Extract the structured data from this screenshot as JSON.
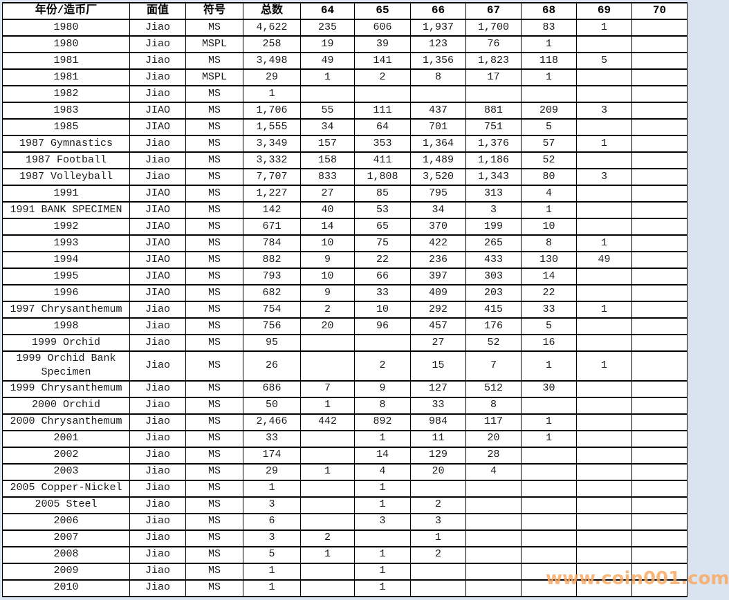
{
  "watermark": {
    "text": "www.coin001.com",
    "color": "#f9aa64"
  },
  "chart_data": {
    "type": "table",
    "title": "",
    "columns": [
      "年份/造币厂",
      "面值",
      "符号",
      "总数",
      "64",
      "65",
      "66",
      "67",
      "68",
      "69",
      "70"
    ],
    "rows": [
      [
        "1980",
        "Jiao",
        "MS",
        "4,622",
        "235",
        "606",
        "1,937",
        "1,700",
        "83",
        "1",
        ""
      ],
      [
        "1980",
        "Jiao",
        "MSPL",
        "258",
        "19",
        "39",
        "123",
        "76",
        "1",
        "",
        ""
      ],
      [
        "1981",
        "Jiao",
        "MS",
        "3,498",
        "49",
        "141",
        "1,356",
        "1,823",
        "118",
        "5",
        ""
      ],
      [
        "1981",
        "Jiao",
        "MSPL",
        "29",
        "1",
        "2",
        "8",
        "17",
        "1",
        "",
        ""
      ],
      [
        "1982",
        "Jiao",
        "MS",
        "1",
        "",
        "",
        "",
        "",
        "",
        "",
        ""
      ],
      [
        "1983",
        "JIAO",
        "MS",
        "1,706",
        "55",
        "111",
        "437",
        "881",
        "209",
        "3",
        ""
      ],
      [
        "1985",
        "JIAO",
        "MS",
        "1,555",
        "34",
        "64",
        "701",
        "751",
        "5",
        "",
        ""
      ],
      [
        "1987 Gymnastics",
        "Jiao",
        "MS",
        "3,349",
        "157",
        "353",
        "1,364",
        "1,376",
        "57",
        "1",
        ""
      ],
      [
        "1987 Football",
        "Jiao",
        "MS",
        "3,332",
        "158",
        "411",
        "1,489",
        "1,186",
        "52",
        "",
        ""
      ],
      [
        "1987 Volleyball",
        "Jiao",
        "MS",
        "7,707",
        "833",
        "1,808",
        "3,520",
        "1,343",
        "80",
        "3",
        ""
      ],
      [
        "1991",
        "JIAO",
        "MS",
        "1,227",
        "27",
        "85",
        "795",
        "313",
        "4",
        "",
        ""
      ],
      [
        "1991 BANK SPECIMEN",
        "JIAO",
        "MS",
        "142",
        "40",
        "53",
        "34",
        "3",
        "1",
        "",
        ""
      ],
      [
        "1992",
        "JIAO",
        "MS",
        "671",
        "14",
        "65",
        "370",
        "199",
        "10",
        "",
        ""
      ],
      [
        "1993",
        "JIAO",
        "MS",
        "784",
        "10",
        "75",
        "422",
        "265",
        "8",
        "1",
        ""
      ],
      [
        "1994",
        "JIAO",
        "MS",
        "882",
        "9",
        "22",
        "236",
        "433",
        "130",
        "49",
        ""
      ],
      [
        "1995",
        "JIAO",
        "MS",
        "793",
        "10",
        "66",
        "397",
        "303",
        "14",
        "",
        ""
      ],
      [
        "1996",
        "JIAO",
        "MS",
        "682",
        "9",
        "33",
        "409",
        "203",
        "22",
        "",
        ""
      ],
      [
        "1997 Chrysanthemum",
        "Jiao",
        "MS",
        "754",
        "2",
        "10",
        "292",
        "415",
        "33",
        "1",
        ""
      ],
      [
        "1998",
        "Jiao",
        "MS",
        "756",
        "20",
        "96",
        "457",
        "176",
        "5",
        "",
        ""
      ],
      [
        "1999 Orchid",
        "Jiao",
        "MS",
        "95",
        "",
        "",
        "27",
        "52",
        "16",
        "",
        ""
      ],
      [
        "1999 Orchid Bank Specimen",
        "Jiao",
        "MS",
        "26",
        "",
        "2",
        "15",
        "7",
        "1",
        "1",
        ""
      ],
      [
        "1999 Chrysanthemum",
        "Jiao",
        "MS",
        "686",
        "7",
        "9",
        "127",
        "512",
        "30",
        "",
        ""
      ],
      [
        "2000 Orchid",
        "Jiao",
        "MS",
        "50",
        "1",
        "8",
        "33",
        "8",
        "",
        "",
        ""
      ],
      [
        "2000 Chrysanthemum",
        "Jiao",
        "MS",
        "2,466",
        "442",
        "892",
        "984",
        "117",
        "1",
        "",
        ""
      ],
      [
        "2001",
        "Jiao",
        "MS",
        "33",
        "",
        "1",
        "11",
        "20",
        "1",
        "",
        ""
      ],
      [
        "2002",
        "Jiao",
        "MS",
        "174",
        "",
        "14",
        "129",
        "28",
        "",
        "",
        ""
      ],
      [
        "2003",
        "Jiao",
        "MS",
        "29",
        "1",
        "4",
        "20",
        "4",
        "",
        "",
        ""
      ],
      [
        "2005 Copper-Nickel",
        "Jiao",
        "MS",
        "1",
        "",
        "1",
        "",
        "",
        "",
        "",
        ""
      ],
      [
        "2005 Steel",
        "Jiao",
        "MS",
        "3",
        "",
        "1",
        "2",
        "",
        "",
        "",
        ""
      ],
      [
        "2006",
        "Jiao",
        "MS",
        "6",
        "",
        "3",
        "3",
        "",
        "",
        "",
        ""
      ],
      [
        "2007",
        "Jiao",
        "MS",
        "3",
        "2",
        "",
        "1",
        "",
        "",
        "",
        ""
      ],
      [
        "2008",
        "Jiao",
        "MS",
        "5",
        "1",
        "1",
        "2",
        "",
        "",
        "",
        ""
      ],
      [
        "2009",
        "Jiao",
        "MS",
        "1",
        "",
        "1",
        "",
        "",
        "",
        "",
        ""
      ],
      [
        "2010",
        "Jiao",
        "MS",
        "1",
        "",
        "1",
        "",
        "",
        "",
        "",
        ""
      ]
    ],
    "layout": {
      "grid": true,
      "header_bold": true,
      "cell_align": "center"
    }
  }
}
